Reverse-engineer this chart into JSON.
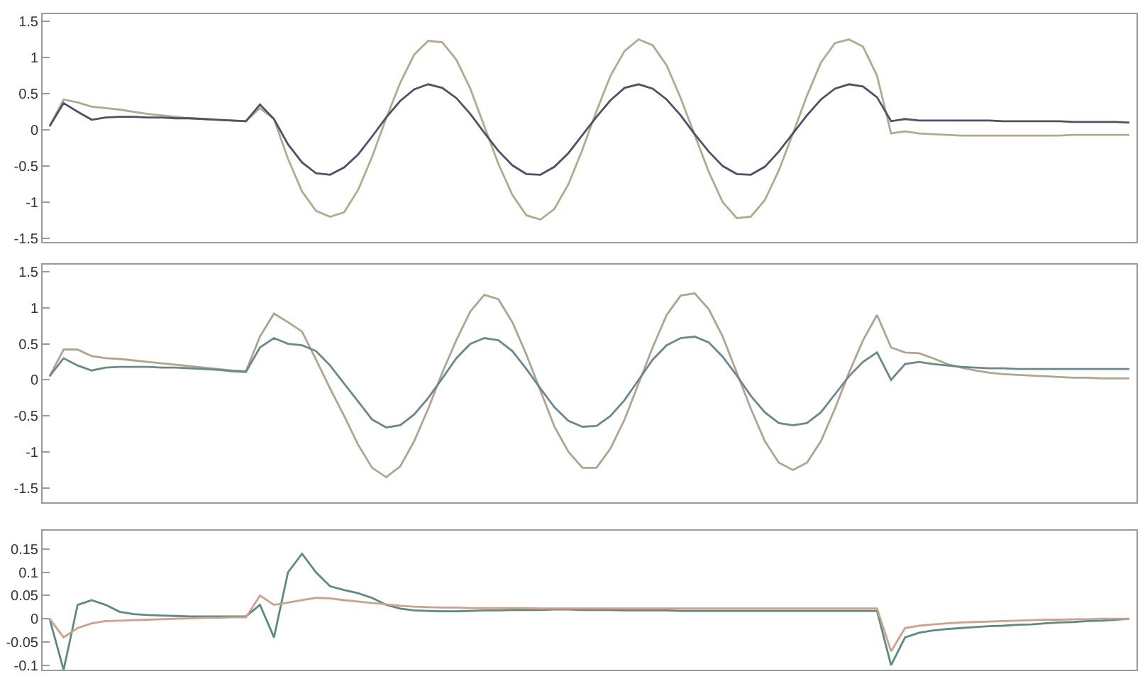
{
  "chart_data": [
    {
      "type": "line",
      "categories": [
        null,
        null,
        null,
        null,
        null,
        null,
        null,
        null,
        null,
        null,
        null,
        null,
        null,
        null,
        null,
        null,
        null,
        null,
        null,
        null,
        null,
        null,
        null,
        null,
        null,
        null,
        null,
        null,
        null,
        null,
        null,
        null,
        null,
        null,
        null,
        null,
        null,
        null,
        null,
        null,
        null,
        null,
        null,
        null,
        null,
        null,
        null,
        null,
        null,
        null,
        null,
        null,
        null,
        null,
        null,
        null,
        null,
        null,
        null,
        null,
        null,
        null,
        null,
        null,
        null,
        null,
        null,
        null,
        null,
        null,
        null,
        null,
        null,
        null,
        null,
        null,
        null,
        null
      ],
      "series": [
        {
          "color": "#b4a88e",
          "values": [
            0.05,
            0.42,
            0.38,
            0.32,
            0.3,
            0.28,
            0.25,
            0.22,
            0.2,
            0.18,
            0.16,
            0.15,
            0.14,
            0.13,
            0.12,
            0.3,
            0.15,
            -0.4,
            -0.85,
            -1.12,
            -1.2,
            -1.14,
            -0.83,
            -0.37,
            0.16,
            0.65,
            1.04,
            1.23,
            1.21,
            0.97,
            0.57,
            0.05,
            -0.47,
            -0.9,
            -1.18,
            -1.24,
            -1.09,
            -0.75,
            -0.27,
            0.26,
            0.75,
            1.09,
            1.25,
            1.17,
            0.89,
            0.44,
            -0.07,
            -0.58,
            -1.0,
            -1.22,
            -1.2,
            -0.97,
            -0.56,
            -0.05,
            0.47,
            0.93,
            1.2,
            1.25,
            1.15,
            0.75,
            -0.05,
            -0.02,
            -0.05,
            -0.06,
            -0.07,
            -0.08,
            -0.08,
            -0.08,
            -0.08,
            -0.08,
            -0.08,
            -0.08,
            -0.08,
            -0.07,
            -0.07,
            -0.07,
            -0.07,
            -0.07
          ]
        },
        {
          "color": "#50506a",
          "values": [
            0.05,
            0.37,
            0.25,
            0.14,
            0.17,
            0.18,
            0.18,
            0.17,
            0.17,
            0.16,
            0.16,
            0.15,
            0.14,
            0.13,
            0.12,
            0.35,
            0.15,
            -0.2,
            -0.45,
            -0.6,
            -0.62,
            -0.52,
            -0.34,
            -0.09,
            0.17,
            0.4,
            0.56,
            0.63,
            0.58,
            0.44,
            0.22,
            -0.04,
            -0.29,
            -0.49,
            -0.61,
            -0.62,
            -0.51,
            -0.32,
            -0.07,
            0.18,
            0.41,
            0.58,
            0.63,
            0.57,
            0.42,
            0.2,
            -0.06,
            -0.3,
            -0.5,
            -0.61,
            -0.62,
            -0.51,
            -0.3,
            -0.05,
            0.2,
            0.42,
            0.57,
            0.63,
            0.6,
            0.45,
            0.12,
            0.15,
            0.13,
            0.13,
            0.13,
            0.13,
            0.13,
            0.13,
            0.12,
            0.12,
            0.12,
            0.12,
            0.12,
            0.11,
            0.11,
            0.11,
            0.11,
            0.1
          ]
        }
      ],
      "ylim": [
        -1.55,
        1.6
      ],
      "yticks": [
        -1.5,
        -1,
        -0.5,
        0,
        0.5,
        1,
        1.5
      ],
      "tick_labels": "y",
      "line_style": "solid",
      "marker": "none"
    },
    {
      "type": "line",
      "categories": [
        null,
        null,
        null,
        null,
        null,
        null,
        null,
        null,
        null,
        null,
        null,
        null,
        null,
        null,
        null,
        null,
        null,
        null,
        null,
        null,
        null,
        null,
        null,
        null,
        null,
        null,
        null,
        null,
        null,
        null,
        null,
        null,
        null,
        null,
        null,
        null,
        null,
        null,
        null,
        null,
        null,
        null,
        null,
        null,
        null,
        null,
        null,
        null,
        null,
        null,
        null,
        null,
        null,
        null,
        null,
        null,
        null,
        null,
        null,
        null,
        null,
        null,
        null,
        null,
        null,
        null,
        null,
        null,
        null,
        null,
        null,
        null,
        null,
        null,
        null,
        null,
        null,
        null
      ],
      "series": [
        {
          "color": "#b0a48e",
          "values": [
            0.05,
            0.42,
            0.42,
            0.33,
            0.3,
            0.29,
            0.27,
            0.25,
            0.23,
            0.21,
            0.19,
            0.17,
            0.15,
            0.13,
            0.12,
            0.6,
            0.92,
            0.8,
            0.67,
            0.28,
            -0.12,
            -0.5,
            -0.9,
            -1.22,
            -1.35,
            -1.2,
            -0.85,
            -0.4,
            0.1,
            0.55,
            0.95,
            1.18,
            1.12,
            0.8,
            0.35,
            -0.15,
            -0.65,
            -1.0,
            -1.22,
            -1.22,
            -0.95,
            -0.55,
            -0.05,
            0.45,
            0.9,
            1.17,
            1.2,
            0.98,
            0.6,
            0.1,
            -0.4,
            -0.85,
            -1.15,
            -1.25,
            -1.15,
            -0.85,
            -0.4,
            0.1,
            0.55,
            0.9,
            0.45,
            0.38,
            0.37,
            0.3,
            0.22,
            0.17,
            0.13,
            0.1,
            0.08,
            0.07,
            0.06,
            0.05,
            0.04,
            0.03,
            0.03,
            0.02,
            0.02,
            0.02
          ]
        },
        {
          "color": "#6a8a8a",
          "values": [
            0.05,
            0.3,
            0.2,
            0.13,
            0.17,
            0.18,
            0.18,
            0.18,
            0.17,
            0.17,
            0.16,
            0.15,
            0.14,
            0.12,
            0.11,
            0.45,
            0.58,
            0.5,
            0.48,
            0.4,
            0.2,
            -0.05,
            -0.3,
            -0.55,
            -0.66,
            -0.63,
            -0.48,
            -0.25,
            0.02,
            0.3,
            0.5,
            0.58,
            0.55,
            0.4,
            0.15,
            -0.12,
            -0.38,
            -0.57,
            -0.65,
            -0.64,
            -0.5,
            -0.28,
            0.0,
            0.28,
            0.48,
            0.58,
            0.6,
            0.52,
            0.32,
            0.06,
            -0.22,
            -0.45,
            -0.6,
            -0.63,
            -0.6,
            -0.45,
            -0.2,
            0.05,
            0.25,
            0.38,
            0.0,
            0.22,
            0.25,
            0.22,
            0.2,
            0.18,
            0.17,
            0.16,
            0.16,
            0.15,
            0.15,
            0.15,
            0.15,
            0.15,
            0.15,
            0.15,
            0.15,
            0.15
          ]
        }
      ],
      "ylim": [
        -1.7,
        1.6
      ],
      "yticks": [
        -1.5,
        -1,
        -0.5,
        0,
        0.5,
        1,
        1.5
      ],
      "tick_labels": "y",
      "line_style": "solid",
      "marker": "none"
    },
    {
      "type": "line",
      "categories": [
        null,
        null,
        null,
        null,
        null,
        null,
        null,
        null,
        null,
        null,
        null,
        null,
        null,
        null,
        null,
        null,
        null,
        null,
        null,
        null,
        null,
        null,
        null,
        null,
        null,
        null,
        null,
        null,
        null,
        null,
        null,
        null,
        null,
        null,
        null,
        null,
        null,
        null,
        null,
        null,
        null,
        null,
        null,
        null,
        null,
        null,
        null,
        null,
        null,
        null,
        null,
        null,
        null,
        null,
        null,
        null,
        null,
        null,
        null,
        null,
        null,
        null,
        null,
        null,
        null,
        null,
        null,
        null,
        null,
        null,
        null,
        null,
        null,
        null,
        null,
        null,
        null,
        null
      ],
      "series": [
        {
          "color": "#5a8a84",
          "values": [
            0.0,
            -0.11,
            0.03,
            0.04,
            0.03,
            0.015,
            0.01,
            0.008,
            0.007,
            0.006,
            0.005,
            0.005,
            0.005,
            0.005,
            0.005,
            0.03,
            -0.04,
            0.1,
            0.14,
            0.1,
            0.07,
            0.062,
            0.055,
            0.045,
            0.03,
            0.022,
            0.018,
            0.017,
            0.016,
            0.016,
            0.017,
            0.018,
            0.018,
            0.019,
            0.019,
            0.019,
            0.02,
            0.02,
            0.019,
            0.019,
            0.019,
            0.018,
            0.018,
            0.018,
            0.018,
            0.017,
            0.017,
            0.017,
            0.017,
            0.017,
            0.017,
            0.017,
            0.017,
            0.017,
            0.017,
            0.017,
            0.017,
            0.017,
            0.017,
            0.017,
            -0.1,
            -0.04,
            -0.03,
            -0.025,
            -0.022,
            -0.02,
            -0.018,
            -0.016,
            -0.015,
            -0.013,
            -0.012,
            -0.01,
            -0.008,
            -0.007,
            -0.005,
            -0.004,
            -0.002,
            0.0
          ]
        },
        {
          "color": "#d0a08a",
          "values": [
            0.0,
            -0.04,
            -0.02,
            -0.01,
            -0.005,
            -0.004,
            -0.003,
            -0.002,
            -0.001,
            0.0,
            0.001,
            0.002,
            0.002,
            0.003,
            0.003,
            0.05,
            0.03,
            0.035,
            0.04,
            0.045,
            0.044,
            0.04,
            0.037,
            0.034,
            0.031,
            0.028,
            0.026,
            0.025,
            0.024,
            0.024,
            0.023,
            0.023,
            0.023,
            0.023,
            0.023,
            0.022,
            0.022,
            0.022,
            0.022,
            0.022,
            0.022,
            0.022,
            0.022,
            0.022,
            0.022,
            0.022,
            0.022,
            0.022,
            0.022,
            0.022,
            0.022,
            0.022,
            0.022,
            0.022,
            0.022,
            0.022,
            0.022,
            0.022,
            0.022,
            0.022,
            -0.07,
            -0.02,
            -0.015,
            -0.012,
            -0.01,
            -0.008,
            -0.007,
            -0.006,
            -0.005,
            -0.004,
            -0.003,
            -0.002,
            -0.002,
            -0.001,
            -0.001,
            0.0,
            0.0,
            0.0
          ]
        }
      ],
      "ylim": [
        -0.11,
        0.19
      ],
      "yticks": [
        -0.1,
        -0.05,
        0,
        0.05,
        0.1,
        0.15
      ],
      "tick_labels": "y",
      "line_style": "solid",
      "marker": "none"
    }
  ]
}
